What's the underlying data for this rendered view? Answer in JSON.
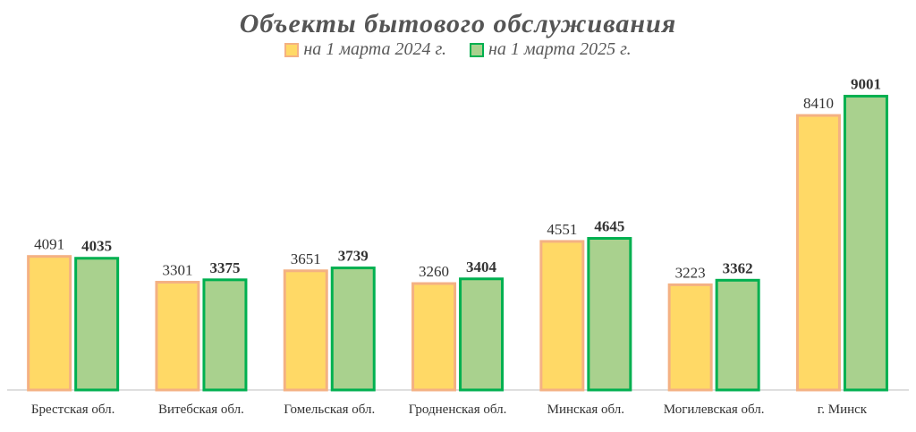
{
  "chart_data": {
    "type": "bar",
    "title": "Объекты бытового обслуживания",
    "categories": [
      "Брестская обл.",
      "Витебская обл.",
      "Гомельская обл.",
      "Гродненская обл.",
      "Минская обл.",
      "Могилевская обл.",
      "г. Минск"
    ],
    "series": [
      {
        "name": "на 1 марта 2024 г.",
        "values": [
          4091,
          3301,
          3651,
          3260,
          4551,
          3223,
          8410
        ],
        "fill": "#FFD966",
        "stroke": "#F4B183"
      },
      {
        "name": "на 1 марта 2025 г.",
        "values": [
          4035,
          3375,
          3739,
          3404,
          4645,
          3362,
          9001
        ],
        "fill": "#A9D18E",
        "stroke": "#00B050"
      }
    ],
    "ylim": [
      0,
      9700
    ],
    "xlabel": "",
    "ylabel": "",
    "grid": false,
    "legend_position": "top"
  }
}
